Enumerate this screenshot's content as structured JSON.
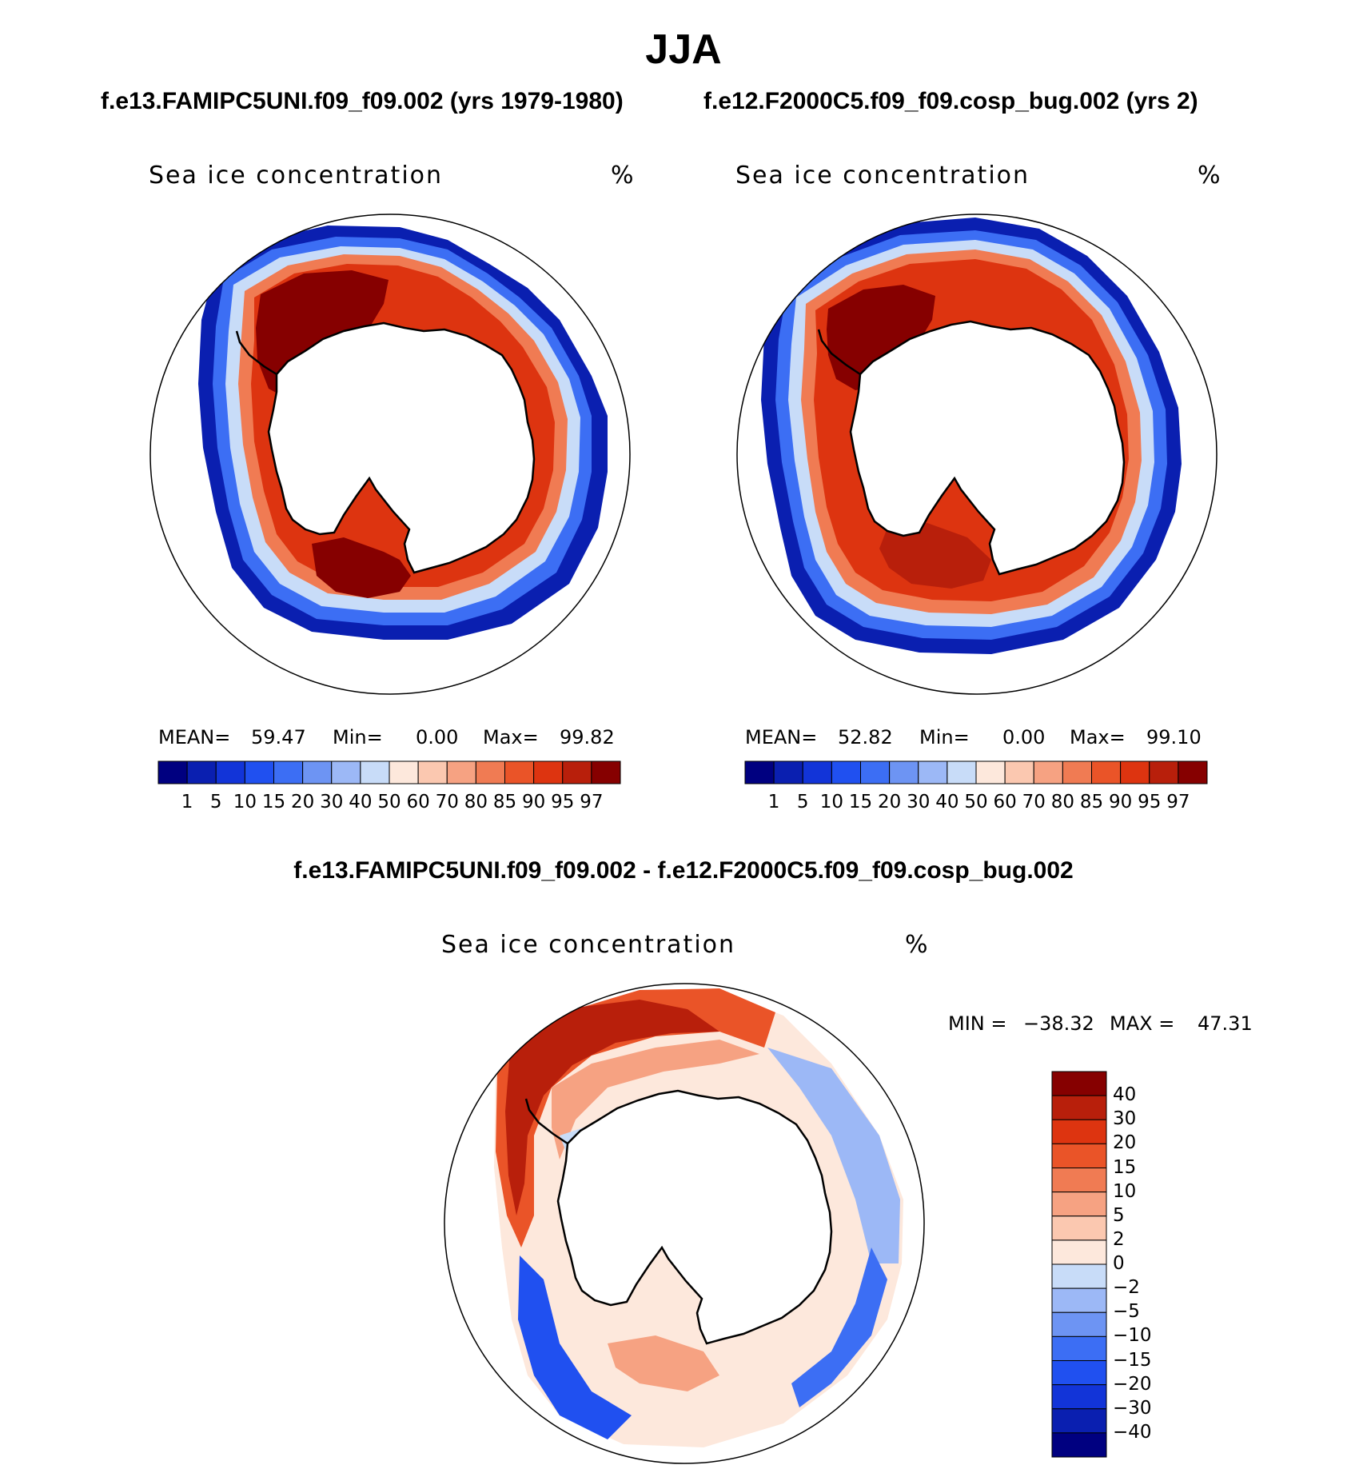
{
  "title": "JJA",
  "chart_data": [
    {
      "type": "heatmap",
      "projection": "south-polar-stereographic",
      "case_title": "f.e13.FAMIPC5UNI.f09_f09.002 (yrs 1979-1980)",
      "variable": "Sea ice concentration",
      "units": "%",
      "stats": {
        "mean_label": "MEAN=",
        "mean": "59.47",
        "min_label": "Min=",
        "min": "0.00",
        "max_label": "Max=",
        "max": "99.82"
      },
      "colorbar_ticks": [
        "1",
        "5",
        "10",
        "15",
        "20",
        "30",
        "40",
        "50",
        "60",
        "70",
        "80",
        "85",
        "90",
        "95",
        "97"
      ]
    },
    {
      "type": "heatmap",
      "projection": "south-polar-stereographic",
      "case_title": "f.e12.F2000C5.f09_f09.cosp_bug.002 (yrs 2)",
      "variable": "Sea ice concentration",
      "units": "%",
      "stats": {
        "mean_label": "MEAN=",
        "mean": "52.82",
        "min_label": "Min=",
        "min": "0.00",
        "max_label": "Max=",
        "max": "99.10"
      },
      "colorbar_ticks": [
        "1",
        "5",
        "10",
        "15",
        "20",
        "30",
        "40",
        "50",
        "60",
        "70",
        "80",
        "85",
        "90",
        "95",
        "97"
      ]
    },
    {
      "type": "heatmap",
      "projection": "south-polar-stereographic",
      "case_title": "f.e13.FAMIPC5UNI.f09_f09.002 - f.e12.F2000C5.f09_f09.cosp_bug.002",
      "variable": "Sea ice concentration",
      "units": "%",
      "stats": {
        "min_label": "MIN =",
        "min": "−38.32",
        "max_label": "MAX =",
        "max": "47.31"
      },
      "colorbar_ticks": [
        "40",
        "30",
        "20",
        "15",
        "10",
        "5",
        "2",
        "0",
        "−2",
        "−5",
        "−10",
        "−15",
        "−20",
        "−30",
        "−40"
      ]
    }
  ],
  "colors": {
    "abs_scale": [
      "#000080",
      "#0a1fb0",
      "#1234d8",
      "#2050f0",
      "#3c6ef4",
      "#6d94f3",
      "#9cb8f6",
      "#c8dcf8",
      "#fde8dc",
      "#fbc8b0",
      "#f6a282",
      "#f07b53",
      "#ea5428",
      "#dd3410",
      "#b81f0b",
      "#860000"
    ],
    "diff_scale": [
      "#860000",
      "#b81f0b",
      "#dd3410",
      "#ea5428",
      "#f07b53",
      "#f6a282",
      "#fbc8b0",
      "#fde8dc",
      "#c8dcf8",
      "#9cb8f6",
      "#6d94f3",
      "#3c6ef4",
      "#2050f0",
      "#1234d8",
      "#0a1fb0",
      "#000080"
    ],
    "land": "#ffffff",
    "coast": "#000000"
  }
}
